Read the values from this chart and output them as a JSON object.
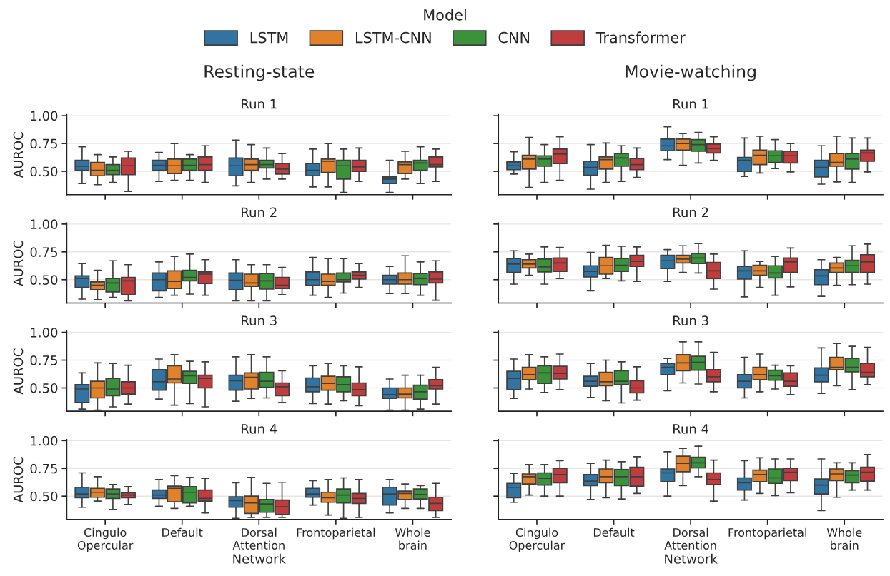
{
  "chart_data": [
    {
      "type": "box",
      "subtitle": "Resting-state",
      "title": "Run 1",
      "ylabel": "AUROC",
      "legend": "top",
      "legend_title": "Model",
      "grid": "y",
      "tick_labels": "y",
      "ylim": [
        0.29,
        1.01
      ],
      "yticks": [
        {
          "value": 0.5,
          "label": "0.50"
        },
        {
          "value": 0.75,
          "label": "0.75"
        },
        {
          "value": 1.0,
          "label": "1.00"
        }
      ],
      "categories": [
        "Cingulo\nOpercular",
        "Default",
        "Dorsal\nAttention",
        "Frontoparietal",
        "Whole\nbrain"
      ],
      "series": [
        {
          "name": "LSTM",
          "color": "#3274a1",
          "boxes": [
            {
              "low": 0.39,
              "q1": 0.51,
              "median": 0.545,
              "q3": 0.6,
              "high": 0.72
            },
            {
              "low": 0.41,
              "q1": 0.51,
              "median": 0.555,
              "q3": 0.6,
              "high": 0.67
            },
            {
              "low": 0.37,
              "q1": 0.46,
              "median": 0.55,
              "q3": 0.62,
              "high": 0.78
            },
            {
              "low": 0.36,
              "q1": 0.46,
              "median": 0.51,
              "q3": 0.57,
              "high": 0.7
            },
            {
              "low": 0.31,
              "q1": 0.39,
              "median": 0.43,
              "q3": 0.45,
              "high": 0.6
            }
          ]
        },
        {
          "name": "LSTM-CNN",
          "color": "#e1812c",
          "boxes": [
            {
              "low": 0.38,
              "q1": 0.46,
              "median": 0.51,
              "q3": 0.58,
              "high": 0.65
            },
            {
              "low": 0.42,
              "q1": 0.48,
              "median": 0.55,
              "q3": 0.61,
              "high": 0.75
            },
            {
              "low": 0.4,
              "q1": 0.51,
              "median": 0.56,
              "q3": 0.61,
              "high": 0.74
            },
            {
              "low": 0.36,
              "q1": 0.49,
              "median": 0.59,
              "q3": 0.61,
              "high": 0.75
            },
            {
              "low": 0.43,
              "q1": 0.48,
              "median": 0.56,
              "q3": 0.585,
              "high": 0.68
            }
          ]
        },
        {
          "name": "CNN",
          "color": "#3a923a",
          "boxes": [
            {
              "low": 0.4,
              "q1": 0.47,
              "median": 0.51,
              "q3": 0.56,
              "high": 0.63
            },
            {
              "low": 0.42,
              "q1": 0.51,
              "median": 0.555,
              "q3": 0.61,
              "high": 0.65
            },
            {
              "low": 0.43,
              "q1": 0.53,
              "median": 0.56,
              "q3": 0.6,
              "high": 0.71
            },
            {
              "low": 0.31,
              "q1": 0.43,
              "median": 0.55,
              "q3": 0.6,
              "high": 0.7
            },
            {
              "low": 0.39,
              "q1": 0.51,
              "median": 0.575,
              "q3": 0.6,
              "high": 0.72
            }
          ]
        },
        {
          "name": "Transformer",
          "color": "#c03d3e",
          "boxes": [
            {
              "low": 0.32,
              "q1": 0.47,
              "median": 0.55,
              "q3": 0.62,
              "high": 0.68
            },
            {
              "low": 0.4,
              "q1": 0.51,
              "median": 0.56,
              "q3": 0.63,
              "high": 0.73
            },
            {
              "low": 0.43,
              "q1": 0.475,
              "median": 0.52,
              "q3": 0.57,
              "high": 0.66
            },
            {
              "low": 0.41,
              "q1": 0.5,
              "median": 0.54,
              "q3": 0.6,
              "high": 0.71
            },
            {
              "low": 0.41,
              "q1": 0.54,
              "median": 0.56,
              "q3": 0.63,
              "high": 0.7
            }
          ]
        }
      ]
    },
    {
      "type": "box",
      "title": "Run 2",
      "ylabel": "AUROC",
      "grid": "y",
      "tick_labels": "y",
      "ylim": [
        0.29,
        1.01
      ],
      "yticks": [
        {
          "value": 0.5,
          "label": "0.50"
        },
        {
          "value": 0.75,
          "label": "0.75"
        },
        {
          "value": 1.0,
          "label": "1.00"
        }
      ],
      "categories": [
        "Cingulo\nOpercular",
        "Default",
        "Dorsal\nAttention",
        "Frontoparietal",
        "Whole\nbrain"
      ],
      "series": [
        {
          "name": "LSTM",
          "color": "#3274a1",
          "boxes": [
            {
              "low": 0.325,
              "q1": 0.43,
              "median": 0.51,
              "q3": 0.535,
              "high": 0.645
            },
            {
              "low": 0.34,
              "q1": 0.4,
              "median": 0.5,
              "q3": 0.56,
              "high": 0.66
            },
            {
              "low": 0.31,
              "q1": 0.41,
              "median": 0.495,
              "q3": 0.56,
              "high": 0.68
            },
            {
              "low": 0.36,
              "q1": 0.45,
              "median": 0.5,
              "q3": 0.57,
              "high": 0.7
            },
            {
              "low": 0.375,
              "q1": 0.46,
              "median": 0.5,
              "q3": 0.54,
              "high": 0.62
            }
          ]
        },
        {
          "name": "LSTM-CNN",
          "color": "#e1812c",
          "boxes": [
            {
              "low": 0.32,
              "q1": 0.41,
              "median": 0.45,
              "q3": 0.48,
              "high": 0.585
            },
            {
              "low": 0.36,
              "q1": 0.42,
              "median": 0.485,
              "q3": 0.58,
              "high": 0.71
            },
            {
              "low": 0.31,
              "q1": 0.44,
              "median": 0.47,
              "q3": 0.55,
              "high": 0.635
            },
            {
              "low": 0.34,
              "q1": 0.45,
              "median": 0.485,
              "q3": 0.55,
              "high": 0.69
            },
            {
              "low": 0.375,
              "q1": 0.46,
              "median": 0.5,
              "q3": 0.56,
              "high": 0.715
            }
          ]
        },
        {
          "name": "CNN",
          "color": "#3a923a",
          "boxes": [
            {
              "low": 0.34,
              "q1": 0.39,
              "median": 0.47,
              "q3": 0.51,
              "high": 0.67
            },
            {
              "low": 0.37,
              "q1": 0.49,
              "median": 0.52,
              "q3": 0.585,
              "high": 0.73
            },
            {
              "low": 0.31,
              "q1": 0.415,
              "median": 0.49,
              "q3": 0.555,
              "high": 0.635
            },
            {
              "low": 0.38,
              "q1": 0.48,
              "median": 0.5,
              "q3": 0.56,
              "high": 0.69
            },
            {
              "low": 0.36,
              "q1": 0.455,
              "median": 0.51,
              "q3": 0.555,
              "high": 0.66
            }
          ]
        },
        {
          "name": "Transformer",
          "color": "#c03d3e",
          "boxes": [
            {
              "low": 0.31,
              "q1": 0.365,
              "median": 0.49,
              "q3": 0.52,
              "high": 0.635
            },
            {
              "low": 0.36,
              "q1": 0.465,
              "median": 0.55,
              "q3": 0.57,
              "high": 0.68
            },
            {
              "low": 0.365,
              "q1": 0.42,
              "median": 0.45,
              "q3": 0.52,
              "high": 0.61
            },
            {
              "low": 0.43,
              "q1": 0.505,
              "median": 0.54,
              "q3": 0.57,
              "high": 0.645
            },
            {
              "low": 0.315,
              "q1": 0.47,
              "median": 0.505,
              "q3": 0.57,
              "high": 0.67
            }
          ]
        }
      ]
    },
    {
      "type": "box",
      "title": "Run 3",
      "ylabel": "AUROC",
      "grid": "y",
      "tick_labels": "y",
      "ylim": [
        0.29,
        1.01
      ],
      "yticks": [
        {
          "value": 0.5,
          "label": "0.50"
        },
        {
          "value": 0.75,
          "label": "0.75"
        },
        {
          "value": 1.0,
          "label": "1.00"
        }
      ],
      "categories": [
        "Cingulo\nOpercular",
        "Default",
        "Dorsal\nAttention",
        "Frontoparietal",
        "Whole\nbrain"
      ],
      "series": [
        {
          "name": "LSTM",
          "color": "#3274a1",
          "boxes": [
            {
              "low": 0.31,
              "q1": 0.37,
              "median": 0.49,
              "q3": 0.53,
              "high": 0.635
            },
            {
              "low": 0.4,
              "q1": 0.48,
              "median": 0.555,
              "q3": 0.665,
              "high": 0.76
            },
            {
              "low": 0.38,
              "q1": 0.48,
              "median": 0.565,
              "q3": 0.615,
              "high": 0.78
            },
            {
              "low": 0.36,
              "q1": 0.465,
              "median": 0.51,
              "q3": 0.59,
              "high": 0.7
            },
            {
              "low": 0.3,
              "q1": 0.405,
              "median": 0.44,
              "q3": 0.5,
              "high": 0.58
            }
          ]
        },
        {
          "name": "LSTM-CNN",
          "color": "#e1812c",
          "boxes": [
            {
              "low": 0.3,
              "q1": 0.41,
              "median": 0.5,
              "q3": 0.56,
              "high": 0.725
            },
            {
              "low": 0.345,
              "q1": 0.545,
              "median": 0.58,
              "q3": 0.7,
              "high": 0.8
            },
            {
              "low": 0.405,
              "q1": 0.49,
              "median": 0.595,
              "q3": 0.635,
              "high": 0.8
            },
            {
              "low": 0.355,
              "q1": 0.48,
              "median": 0.54,
              "q3": 0.605,
              "high": 0.72
            },
            {
              "low": 0.3,
              "q1": 0.41,
              "median": 0.445,
              "q3": 0.5,
              "high": 0.615
            }
          ]
        },
        {
          "name": "CNN",
          "color": "#3a923a",
          "boxes": [
            {
              "low": 0.33,
              "q1": 0.43,
              "median": 0.49,
              "q3": 0.585,
              "high": 0.72
            },
            {
              "low": 0.36,
              "q1": 0.54,
              "median": 0.61,
              "q3": 0.65,
              "high": 0.74
            },
            {
              "low": 0.41,
              "q1": 0.505,
              "median": 0.56,
              "q3": 0.64,
              "high": 0.78
            },
            {
              "low": 0.385,
              "q1": 0.465,
              "median": 0.53,
              "q3": 0.6,
              "high": 0.7
            },
            {
              "low": 0.31,
              "q1": 0.4,
              "median": 0.465,
              "q3": 0.525,
              "high": 0.615
            }
          ]
        },
        {
          "name": "Transformer",
          "color": "#c03d3e",
          "boxes": [
            {
              "low": 0.355,
              "q1": 0.445,
              "median": 0.5,
              "q3": 0.555,
              "high": 0.705
            },
            {
              "low": 0.33,
              "q1": 0.5,
              "median": 0.585,
              "q3": 0.615,
              "high": 0.735
            },
            {
              "low": 0.37,
              "q1": 0.43,
              "median": 0.51,
              "q3": 0.545,
              "high": 0.655
            },
            {
              "low": 0.34,
              "q1": 0.43,
              "median": 0.485,
              "q3": 0.545,
              "high": 0.69
            },
            {
              "low": 0.355,
              "q1": 0.49,
              "median": 0.52,
              "q3": 0.575,
              "high": 0.685
            }
          ]
        }
      ]
    },
    {
      "type": "box",
      "title": "Run 4",
      "xlabel": "Network",
      "ylabel": "AUROC",
      "grid": "y",
      "ylim": [
        0.29,
        1.01
      ],
      "yticks": [
        {
          "value": 0.5,
          "label": "0.50"
        },
        {
          "value": 0.75,
          "label": "0.75"
        },
        {
          "value": 1.0,
          "label": "1.00"
        }
      ],
      "categories": [
        "Cingulo\nOpercular",
        "Default",
        "Dorsal\nAttention",
        "Frontoparietal",
        "Whole\nbrain"
      ],
      "series": [
        {
          "name": "LSTM",
          "color": "#3274a1",
          "boxes": [
            {
              "low": 0.4,
              "q1": 0.485,
              "median": 0.52,
              "q3": 0.58,
              "high": 0.71
            },
            {
              "low": 0.41,
              "q1": 0.48,
              "median": 0.51,
              "q3": 0.555,
              "high": 0.65
            },
            {
              "low": 0.3,
              "q1": 0.4,
              "median": 0.46,
              "q3": 0.495,
              "high": 0.62
            },
            {
              "low": 0.42,
              "q1": 0.49,
              "median": 0.52,
              "q3": 0.57,
              "high": 0.64
            },
            {
              "low": 0.35,
              "q1": 0.42,
              "median": 0.52,
              "q3": 0.58,
              "high": 0.65
            }
          ]
        },
        {
          "name": "LSTM-CNN",
          "color": "#e1812c",
          "boxes": [
            {
              "low": 0.455,
              "q1": 0.49,
              "median": 0.535,
              "q3": 0.57,
              "high": 0.675
            },
            {
              "low": 0.39,
              "q1": 0.45,
              "median": 0.57,
              "q3": 0.59,
              "high": 0.685
            },
            {
              "low": 0.31,
              "q1": 0.345,
              "median": 0.44,
              "q3": 0.5,
              "high": 0.67
            },
            {
              "low": 0.33,
              "q1": 0.445,
              "median": 0.485,
              "q3": 0.535,
              "high": 0.65
            },
            {
              "low": 0.39,
              "q1": 0.47,
              "median": 0.525,
              "q3": 0.545,
              "high": 0.61
            }
          ]
        },
        {
          "name": "CNN",
          "color": "#3a923a",
          "boxes": [
            {
              "low": 0.38,
              "q1": 0.48,
              "median": 0.52,
              "q3": 0.565,
              "high": 0.605
            },
            {
              "low": 0.41,
              "q1": 0.44,
              "median": 0.535,
              "q3": 0.585,
              "high": 0.67
            },
            {
              "low": 0.31,
              "q1": 0.355,
              "median": 0.43,
              "q3": 0.47,
              "high": 0.615
            },
            {
              "low": 0.3,
              "q1": 0.44,
              "median": 0.51,
              "q3": 0.565,
              "high": 0.665
            },
            {
              "low": 0.39,
              "q1": 0.475,
              "median": 0.515,
              "q3": 0.565,
              "high": 0.595
            }
          ]
        },
        {
          "name": "Transformer",
          "color": "#c03d3e",
          "boxes": [
            {
              "low": 0.425,
              "q1": 0.485,
              "median": 0.51,
              "q3": 0.53,
              "high": 0.585
            },
            {
              "low": 0.35,
              "q1": 0.455,
              "median": 0.48,
              "q3": 0.555,
              "high": 0.66
            },
            {
              "low": 0.31,
              "q1": 0.335,
              "median": 0.405,
              "q3": 0.465,
              "high": 0.625
            },
            {
              "low": 0.31,
              "q1": 0.435,
              "median": 0.48,
              "q3": 0.525,
              "high": 0.65
            },
            {
              "low": 0.31,
              "q1": 0.37,
              "median": 0.435,
              "q3": 0.49,
              "high": 0.615
            }
          ]
        }
      ]
    },
    {
      "type": "box",
      "subtitle": "Movie-watching",
      "title": "Run 1",
      "grid": "y",
      "tick_labels": false,
      "ylim": [
        0.29,
        1.01
      ],
      "yticks": [
        {
          "value": 0.5,
          "label": "0.50"
        },
        {
          "value": 0.75,
          "label": "0.75"
        },
        {
          "value": 1.0,
          "label": "1.00"
        }
      ],
      "categories": [
        "Cingulo\nOpercular",
        "Default",
        "Dorsal\nAttention",
        "Frontoparietal",
        "Whole\nbrain"
      ],
      "series": [
        {
          "name": "LSTM",
          "color": "#3274a1",
          "boxes": [
            {
              "low": 0.475,
              "q1": 0.515,
              "median": 0.55,
              "q3": 0.585,
              "high": 0.675
            },
            {
              "low": 0.34,
              "q1": 0.465,
              "median": 0.535,
              "q3": 0.59,
              "high": 0.74
            },
            {
              "low": 0.605,
              "q1": 0.685,
              "median": 0.73,
              "q3": 0.79,
              "high": 0.9
            },
            {
              "low": 0.455,
              "q1": 0.5,
              "median": 0.6,
              "q3": 0.625,
              "high": 0.8
            },
            {
              "low": 0.385,
              "q1": 0.45,
              "median": 0.535,
              "q3": 0.6,
              "high": 0.73
            }
          ]
        },
        {
          "name": "LSTM-CNN",
          "color": "#e1812c",
          "boxes": [
            {
              "low": 0.355,
              "q1": 0.52,
              "median": 0.61,
              "q3": 0.645,
              "high": 0.805
            },
            {
              "low": 0.4,
              "q1": 0.52,
              "median": 0.605,
              "q3": 0.63,
              "high": 0.755
            },
            {
              "low": 0.555,
              "q1": 0.69,
              "median": 0.75,
              "q3": 0.79,
              "high": 0.84
            },
            {
              "low": 0.485,
              "q1": 0.56,
              "median": 0.645,
              "q3": 0.69,
              "high": 0.815
            },
            {
              "low": 0.405,
              "q1": 0.545,
              "median": 0.58,
              "q3": 0.66,
              "high": 0.815
            }
          ]
        },
        {
          "name": "CNN",
          "color": "#3a923a",
          "boxes": [
            {
              "low": 0.4,
              "q1": 0.545,
              "median": 0.61,
              "q3": 0.64,
              "high": 0.74
            },
            {
              "low": 0.41,
              "q1": 0.545,
              "median": 0.62,
              "q3": 0.66,
              "high": 0.73
            },
            {
              "low": 0.575,
              "q1": 0.68,
              "median": 0.74,
              "q3": 0.785,
              "high": 0.85
            },
            {
              "low": 0.525,
              "q1": 0.58,
              "median": 0.64,
              "q3": 0.685,
              "high": 0.785
            },
            {
              "low": 0.4,
              "q1": 0.52,
              "median": 0.61,
              "q3": 0.66,
              "high": 0.8
            }
          ]
        },
        {
          "name": "Transformer",
          "color": "#c03d3e",
          "boxes": [
            {
              "low": 0.42,
              "q1": 0.57,
              "median": 0.655,
              "q3": 0.7,
              "high": 0.81
            },
            {
              "low": 0.445,
              "q1": 0.515,
              "median": 0.56,
              "q3": 0.615,
              "high": 0.71
            },
            {
              "low": 0.6,
              "q1": 0.665,
              "median": 0.705,
              "q3": 0.745,
              "high": 0.81
            },
            {
              "low": 0.495,
              "q1": 0.575,
              "median": 0.64,
              "q3": 0.68,
              "high": 0.75
            },
            {
              "low": 0.495,
              "q1": 0.59,
              "median": 0.665,
              "q3": 0.69,
              "high": 0.8
            }
          ]
        }
      ]
    },
    {
      "type": "box",
      "title": "Run 2",
      "grid": "y",
      "tick_labels": false,
      "ylim": [
        0.29,
        1.01
      ],
      "yticks": [
        {
          "value": 0.5,
          "label": "0.50"
        },
        {
          "value": 0.75,
          "label": "0.75"
        },
        {
          "value": 1.0,
          "label": "1.00"
        }
      ],
      "categories": [
        "Cingulo\nOpercular",
        "Default",
        "Dorsal\nAttention",
        "Frontoparietal",
        "Whole\nbrain"
      ],
      "series": [
        {
          "name": "LSTM",
          "color": "#3274a1",
          "boxes": [
            {
              "low": 0.46,
              "q1": 0.565,
              "median": 0.64,
              "q3": 0.69,
              "high": 0.76
            },
            {
              "low": 0.4,
              "q1": 0.525,
              "median": 0.575,
              "q3": 0.625,
              "high": 0.745
            },
            {
              "low": 0.485,
              "q1": 0.6,
              "median": 0.67,
              "q3": 0.72,
              "high": 0.77
            },
            {
              "low": 0.345,
              "q1": 0.505,
              "median": 0.58,
              "q3": 0.62,
              "high": 0.76
            },
            {
              "low": 0.35,
              "q1": 0.455,
              "median": 0.535,
              "q3": 0.59,
              "high": 0.68
            }
          ]
        },
        {
          "name": "LSTM-CNN",
          "color": "#e1812c",
          "boxes": [
            {
              "low": 0.54,
              "q1": 0.605,
              "median": 0.64,
              "q3": 0.68,
              "high": 0.73
            },
            {
              "low": 0.51,
              "q1": 0.55,
              "median": 0.625,
              "q3": 0.7,
              "high": 0.81
            },
            {
              "low": 0.565,
              "q1": 0.65,
              "median": 0.685,
              "q3": 0.72,
              "high": 0.805
            },
            {
              "low": 0.43,
              "q1": 0.54,
              "median": 0.58,
              "q3": 0.63,
              "high": 0.665
            },
            {
              "low": 0.45,
              "q1": 0.565,
              "median": 0.605,
              "q3": 0.65,
              "high": 0.7
            }
          ]
        },
        {
          "name": "CNN",
          "color": "#3a923a",
          "boxes": [
            {
              "low": 0.46,
              "q1": 0.57,
              "median": 0.615,
              "q3": 0.685,
              "high": 0.795
            },
            {
              "low": 0.49,
              "q1": 0.575,
              "median": 0.63,
              "q3": 0.69,
              "high": 0.8
            },
            {
              "low": 0.56,
              "q1": 0.645,
              "median": 0.695,
              "q3": 0.735,
              "high": 0.825
            },
            {
              "low": 0.36,
              "q1": 0.515,
              "median": 0.56,
              "q3": 0.625,
              "high": 0.71
            },
            {
              "low": 0.455,
              "q1": 0.565,
              "median": 0.625,
              "q3": 0.675,
              "high": 0.805
            }
          ]
        },
        {
          "name": "Transformer",
          "color": "#c03d3e",
          "boxes": [
            {
              "low": 0.51,
              "q1": 0.575,
              "median": 0.65,
              "q3": 0.695,
              "high": 0.79
            },
            {
              "low": 0.485,
              "q1": 0.62,
              "median": 0.665,
              "q3": 0.72,
              "high": 0.795
            },
            {
              "low": 0.415,
              "q1": 0.51,
              "median": 0.58,
              "q3": 0.655,
              "high": 0.73
            },
            {
              "low": 0.435,
              "q1": 0.565,
              "median": 0.66,
              "q3": 0.695,
              "high": 0.785
            },
            {
              "low": 0.46,
              "q1": 0.565,
              "median": 0.66,
              "q3": 0.725,
              "high": 0.82
            }
          ]
        }
      ]
    },
    {
      "type": "box",
      "title": "Run 3",
      "grid": "y",
      "tick_labels": false,
      "ylim": [
        0.29,
        1.01
      ],
      "yticks": [
        {
          "value": 0.5,
          "label": "0.50"
        },
        {
          "value": 0.75,
          "label": "0.75"
        },
        {
          "value": 1.0,
          "label": "1.00"
        }
      ],
      "categories": [
        "Cingulo\nOpercular",
        "Default",
        "Dorsal\nAttention",
        "Frontoparietal",
        "Whole\nbrain"
      ],
      "series": [
        {
          "name": "LSTM",
          "color": "#3274a1",
          "boxes": [
            {
              "low": 0.405,
              "q1": 0.485,
              "median": 0.585,
              "q3": 0.65,
              "high": 0.76
            },
            {
              "low": 0.415,
              "q1": 0.515,
              "median": 0.56,
              "q3": 0.605,
              "high": 0.72
            },
            {
              "low": 0.475,
              "q1": 0.62,
              "median": 0.685,
              "q3": 0.72,
              "high": 0.765
            },
            {
              "low": 0.41,
              "q1": 0.5,
              "median": 0.56,
              "q3": 0.62,
              "high": 0.775
            },
            {
              "low": 0.45,
              "q1": 0.555,
              "median": 0.615,
              "q3": 0.68,
              "high": 0.86
            }
          ]
        },
        {
          "name": "LSTM-CNN",
          "color": "#e1812c",
          "boxes": [
            {
              "low": 0.49,
              "q1": 0.575,
              "median": 0.62,
              "q3": 0.685,
              "high": 0.8
            },
            {
              "low": 0.385,
              "q1": 0.52,
              "median": 0.555,
              "q3": 0.64,
              "high": 0.75
            },
            {
              "low": 0.545,
              "q1": 0.655,
              "median": 0.725,
              "q3": 0.8,
              "high": 0.915
            },
            {
              "low": 0.465,
              "q1": 0.575,
              "median": 0.62,
              "q3": 0.685,
              "high": 0.805
            },
            {
              "low": 0.52,
              "q1": 0.665,
              "median": 0.685,
              "q3": 0.775,
              "high": 0.9
            }
          ]
        },
        {
          "name": "CNN",
          "color": "#3a923a",
          "boxes": [
            {
              "low": 0.46,
              "q1": 0.54,
              "median": 0.635,
              "q3": 0.7,
              "high": 0.78
            },
            {
              "low": 0.365,
              "q1": 0.53,
              "median": 0.56,
              "q3": 0.655,
              "high": 0.735
            },
            {
              "low": 0.535,
              "q1": 0.66,
              "median": 0.73,
              "q3": 0.785,
              "high": 0.915
            },
            {
              "low": 0.49,
              "q1": 0.57,
              "median": 0.61,
              "q3": 0.66,
              "high": 0.705
            },
            {
              "low": 0.485,
              "q1": 0.645,
              "median": 0.685,
              "q3": 0.765,
              "high": 0.875
            }
          ]
        },
        {
          "name": "Transformer",
          "color": "#c03d3e",
          "boxes": [
            {
              "low": 0.485,
              "q1": 0.58,
              "median": 0.63,
              "q3": 0.695,
              "high": 0.805
            },
            {
              "low": 0.39,
              "q1": 0.455,
              "median": 0.5,
              "q3": 0.565,
              "high": 0.69
            },
            {
              "low": 0.465,
              "q1": 0.555,
              "median": 0.6,
              "q3": 0.665,
              "high": 0.82
            },
            {
              "low": 0.44,
              "q1": 0.515,
              "median": 0.56,
              "q3": 0.635,
              "high": 0.7
            },
            {
              "low": 0.53,
              "q1": 0.6,
              "median": 0.64,
              "q3": 0.72,
              "high": 0.865
            }
          ]
        }
      ]
    },
    {
      "type": "box",
      "title": "Run 4",
      "xlabel": "Network",
      "grid": "y",
      "tick_labels": "x",
      "ylim": [
        0.29,
        1.01
      ],
      "yticks": [
        {
          "value": 0.5,
          "label": "0.50"
        },
        {
          "value": 0.75,
          "label": "0.75"
        },
        {
          "value": 1.0,
          "label": "1.00"
        }
      ],
      "categories": [
        "Cingulo\nOpercular",
        "Default",
        "Dorsal\nAttention",
        "Frontoparietal",
        "Whole\nbrain"
      ],
      "series": [
        {
          "name": "LSTM",
          "color": "#3274a1",
          "boxes": [
            {
              "low": 0.445,
              "q1": 0.485,
              "median": 0.58,
              "q3": 0.615,
              "high": 0.705
            },
            {
              "low": 0.47,
              "q1": 0.595,
              "median": 0.635,
              "q3": 0.695,
              "high": 0.795
            },
            {
              "low": 0.5,
              "q1": 0.63,
              "median": 0.71,
              "q3": 0.745,
              "high": 0.9
            },
            {
              "low": 0.465,
              "q1": 0.555,
              "median": 0.62,
              "q3": 0.665,
              "high": 0.82
            },
            {
              "low": 0.37,
              "q1": 0.52,
              "median": 0.6,
              "q3": 0.655,
              "high": 0.835
            }
          ]
        },
        {
          "name": "LSTM-CNN",
          "color": "#e1812c",
          "boxes": [
            {
              "low": 0.51,
              "q1": 0.61,
              "median": 0.675,
              "q3": 0.7,
              "high": 0.785
            },
            {
              "low": 0.485,
              "q1": 0.62,
              "median": 0.675,
              "q3": 0.745,
              "high": 0.825
            },
            {
              "low": 0.595,
              "q1": 0.72,
              "median": 0.795,
              "q3": 0.86,
              "high": 0.93
            },
            {
              "low": 0.525,
              "q1": 0.63,
              "median": 0.695,
              "q3": 0.735,
              "high": 0.845
            },
            {
              "low": 0.49,
              "q1": 0.64,
              "median": 0.7,
              "q3": 0.745,
              "high": 0.8
            }
          ]
        },
        {
          "name": "CNN",
          "color": "#3a923a",
          "boxes": [
            {
              "low": 0.5,
              "q1": 0.6,
              "median": 0.66,
              "q3": 0.71,
              "high": 0.785
            },
            {
              "low": 0.475,
              "q1": 0.595,
              "median": 0.675,
              "q3": 0.74,
              "high": 0.81
            },
            {
              "low": 0.675,
              "q1": 0.755,
              "median": 0.8,
              "q3": 0.85,
              "high": 0.95
            },
            {
              "low": 0.505,
              "q1": 0.615,
              "median": 0.665,
              "q3": 0.745,
              "high": 0.835
            },
            {
              "low": 0.555,
              "q1": 0.62,
              "median": 0.69,
              "q3": 0.73,
              "high": 0.8
            }
          ]
        },
        {
          "name": "Transformer",
          "color": "#c03d3e",
          "boxes": [
            {
              "low": 0.5,
              "q1": 0.62,
              "median": 0.695,
              "q3": 0.75,
              "high": 0.82
            },
            {
              "low": 0.525,
              "q1": 0.59,
              "median": 0.675,
              "q3": 0.76,
              "high": 0.855
            },
            {
              "low": 0.455,
              "q1": 0.605,
              "median": 0.65,
              "q3": 0.71,
              "high": 0.825
            },
            {
              "low": 0.53,
              "q1": 0.64,
              "median": 0.715,
              "q3": 0.75,
              "high": 0.835
            },
            {
              "low": 0.555,
              "q1": 0.635,
              "median": 0.715,
              "q3": 0.76,
              "high": 0.875
            }
          ]
        }
      ]
    }
  ]
}
